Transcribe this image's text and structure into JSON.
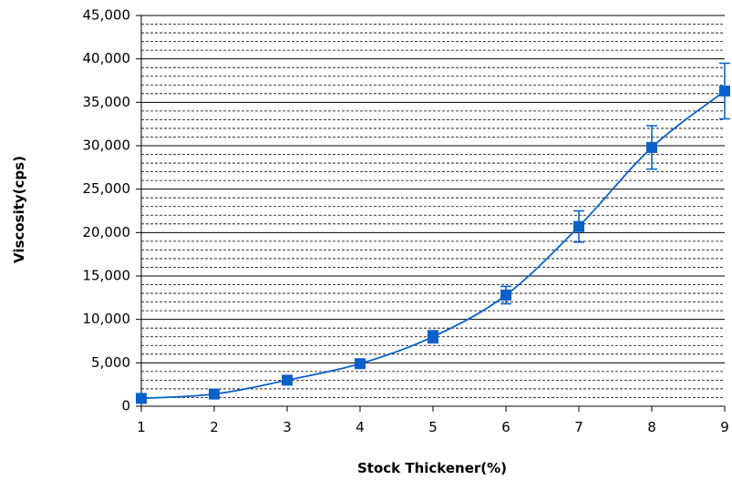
{
  "chart_data": {
    "type": "line",
    "xlabel": "Stock Thickener(%)",
    "ylabel": "Viscosity(cps)",
    "xlim": [
      1,
      9
    ],
    "ylim": [
      0,
      45000
    ],
    "x_ticks": [
      "1",
      "2",
      "3",
      "4",
      "5",
      "6",
      "7",
      "8",
      "9"
    ],
    "y_ticks": [
      "0",
      "5,000",
      "10,000",
      "15,000",
      "20,000",
      "25,000",
      "30,000",
      "35,000",
      "40,000",
      "45,000"
    ],
    "grid": {
      "major": true,
      "minor_dashed": true
    },
    "series": [
      {
        "x": [
          1,
          2,
          3,
          4,
          5,
          6,
          7,
          8,
          9
        ],
        "y": [
          900,
          1400,
          3000,
          4900,
          8000,
          12800,
          20700,
          29800,
          36300
        ],
        "error": [
          0,
          0,
          500,
          300,
          700,
          1000,
          1800,
          2500,
          3200
        ],
        "color": "#0a62c9",
        "marker": "square"
      }
    ]
  }
}
